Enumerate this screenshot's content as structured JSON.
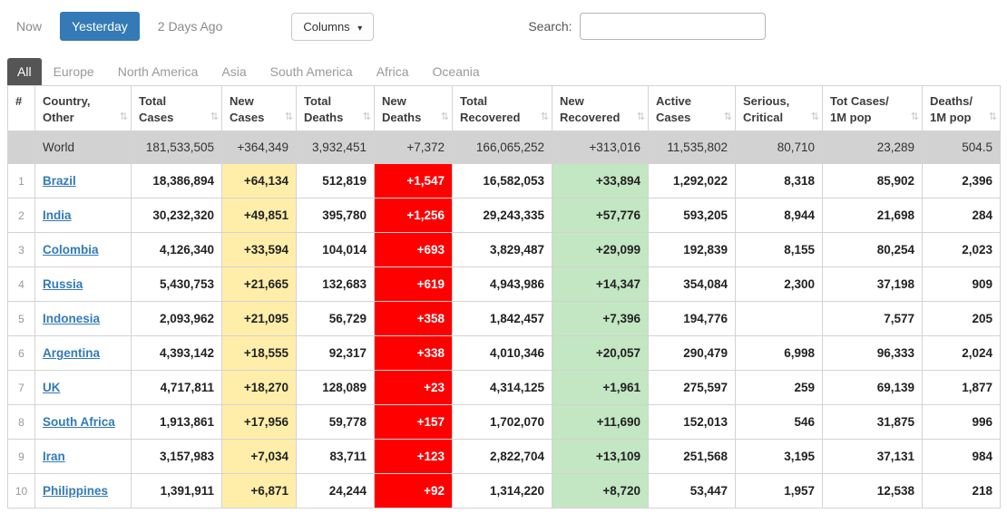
{
  "toolbar": {
    "now": "Now",
    "yesterday": "Yesterday",
    "two_days_ago": "2 Days Ago",
    "columns": "Columns",
    "search_label": "Search:",
    "search_value": ""
  },
  "icons": {
    "caret_down": "▾",
    "sort": "⇅"
  },
  "tabs": [
    "All",
    "Europe",
    "North America",
    "Asia",
    "South America",
    "Africa",
    "Oceania"
  ],
  "active_tab": "All",
  "colors": {
    "accent_blue": "#337ab7",
    "new_cases_bg": "#FFEEAA",
    "new_deaths_bg": "#FF0000",
    "new_recovered_bg": "#C3E6C3",
    "world_row_bg": "#D2D2D2"
  },
  "table": {
    "headers": [
      {
        "label": "#",
        "name": "rank",
        "sortable": false
      },
      {
        "label": "Country,\nOther",
        "name": "country-other",
        "sortable": true
      },
      {
        "label": "Total\nCases",
        "name": "total-cases",
        "sortable": true
      },
      {
        "label": "New\nCases",
        "name": "new-cases",
        "sortable": true
      },
      {
        "label": "Total\nDeaths",
        "name": "total-deaths",
        "sortable": true
      },
      {
        "label": "New\nDeaths",
        "name": "new-deaths",
        "sortable": true
      },
      {
        "label": "Total\nRecovered",
        "name": "total-recovered",
        "sortable": true
      },
      {
        "label": "New\nRecovered",
        "name": "new-recovered",
        "sortable": true
      },
      {
        "label": "Active\nCases",
        "name": "active-cases",
        "sortable": true
      },
      {
        "label": "Serious,\nCritical",
        "name": "serious-critical",
        "sortable": true
      },
      {
        "label": "Tot Cases/\n1M pop",
        "name": "tot-cases-1m-pop",
        "sortable": true
      },
      {
        "label": "Deaths/\n1M pop",
        "name": "deaths-1m-pop",
        "sortable": true
      }
    ],
    "world": {
      "rank": "",
      "country": "World",
      "cells": [
        "181,533,505",
        "+364,349",
        "3,932,451",
        "+7,372",
        "166,065,252",
        "+313,016",
        "11,535,802",
        "80,710",
        "23,289",
        "504.5"
      ]
    },
    "rows": [
      {
        "rank": "1",
        "country": "Brazil",
        "cells": [
          "18,386,894",
          "+64,134",
          "512,819",
          "+1,547",
          "16,582,053",
          "+33,894",
          "1,292,022",
          "8,318",
          "85,902",
          "2,396"
        ]
      },
      {
        "rank": "2",
        "country": "India",
        "cells": [
          "30,232,320",
          "+49,851",
          "395,780",
          "+1,256",
          "29,243,335",
          "+57,776",
          "593,205",
          "8,944",
          "21,698",
          "284"
        ]
      },
      {
        "rank": "3",
        "country": "Colombia",
        "cells": [
          "4,126,340",
          "+33,594",
          "104,014",
          "+693",
          "3,829,487",
          "+29,099",
          "192,839",
          "8,155",
          "80,254",
          "2,023"
        ]
      },
      {
        "rank": "4",
        "country": "Russia",
        "cells": [
          "5,430,753",
          "+21,665",
          "132,683",
          "+619",
          "4,943,986",
          "+14,347",
          "354,084",
          "2,300",
          "37,198",
          "909"
        ]
      },
      {
        "rank": "5",
        "country": "Indonesia",
        "cells": [
          "2,093,962",
          "+21,095",
          "56,729",
          "+358",
          "1,842,457",
          "+7,396",
          "194,776",
          "",
          "7,577",
          "205"
        ]
      },
      {
        "rank": "6",
        "country": "Argentina",
        "cells": [
          "4,393,142",
          "+18,555",
          "92,317",
          "+338",
          "4,010,346",
          "+20,057",
          "290,479",
          "6,998",
          "96,333",
          "2,024"
        ]
      },
      {
        "rank": "7",
        "country": "UK",
        "cells": [
          "4,717,811",
          "+18,270",
          "128,089",
          "+23",
          "4,314,125",
          "+1,961",
          "275,597",
          "259",
          "69,139",
          "1,877"
        ]
      },
      {
        "rank": "8",
        "country": "South Africa",
        "cells": [
          "1,913,861",
          "+17,956",
          "59,778",
          "+157",
          "1,702,070",
          "+11,690",
          "152,013",
          "546",
          "31,875",
          "996"
        ]
      },
      {
        "rank": "9",
        "country": "Iran",
        "cells": [
          "3,157,983",
          "+7,034",
          "83,711",
          "+123",
          "2,822,704",
          "+13,109",
          "251,568",
          "3,195",
          "37,131",
          "984"
        ]
      },
      {
        "rank": "10",
        "country": "Philippines",
        "cells": [
          "1,391,911",
          "+6,871",
          "24,244",
          "+92",
          "1,314,220",
          "+8,720",
          "53,447",
          "1,957",
          "12,538",
          "218"
        ]
      }
    ]
  }
}
